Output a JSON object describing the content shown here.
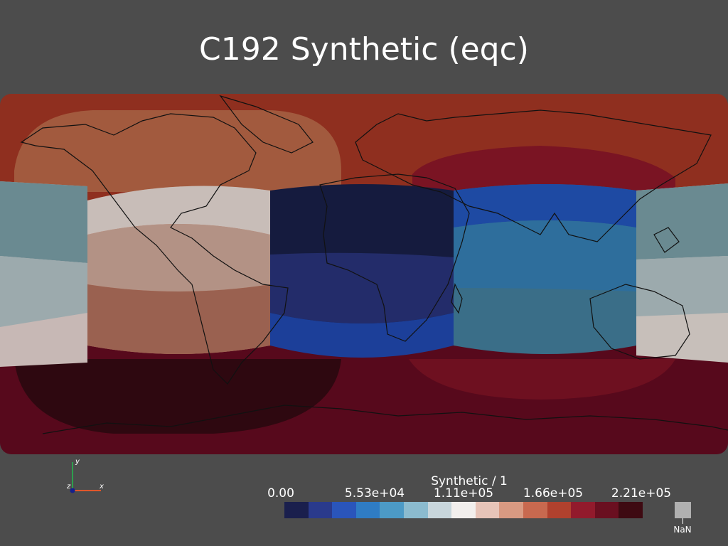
{
  "title": "C192 Synthetic (eqc)",
  "colors": {
    "background": "#4c4c4c",
    "coastline": "#111111"
  },
  "legend": {
    "title": "Synthetic / 1",
    "ticks": [
      "0.00",
      "5.53e+04",
      "1.11e+05",
      "1.66e+05",
      "2.21e+05"
    ],
    "nan_label": "NaN",
    "swatches": [
      "#1a1f4d",
      "#2a3a8c",
      "#2a55bb",
      "#2f7cc4",
      "#4c9ac6",
      "#8bbbcf",
      "#c8d6dc",
      "#f2efed",
      "#e7c4b8",
      "#d99a82",
      "#c8694f",
      "#b0412e",
      "#921a2c",
      "#6a0f20",
      "#3e0a12"
    ]
  },
  "axes_triad": {
    "x": "x",
    "y": "y",
    "z": "z"
  }
}
